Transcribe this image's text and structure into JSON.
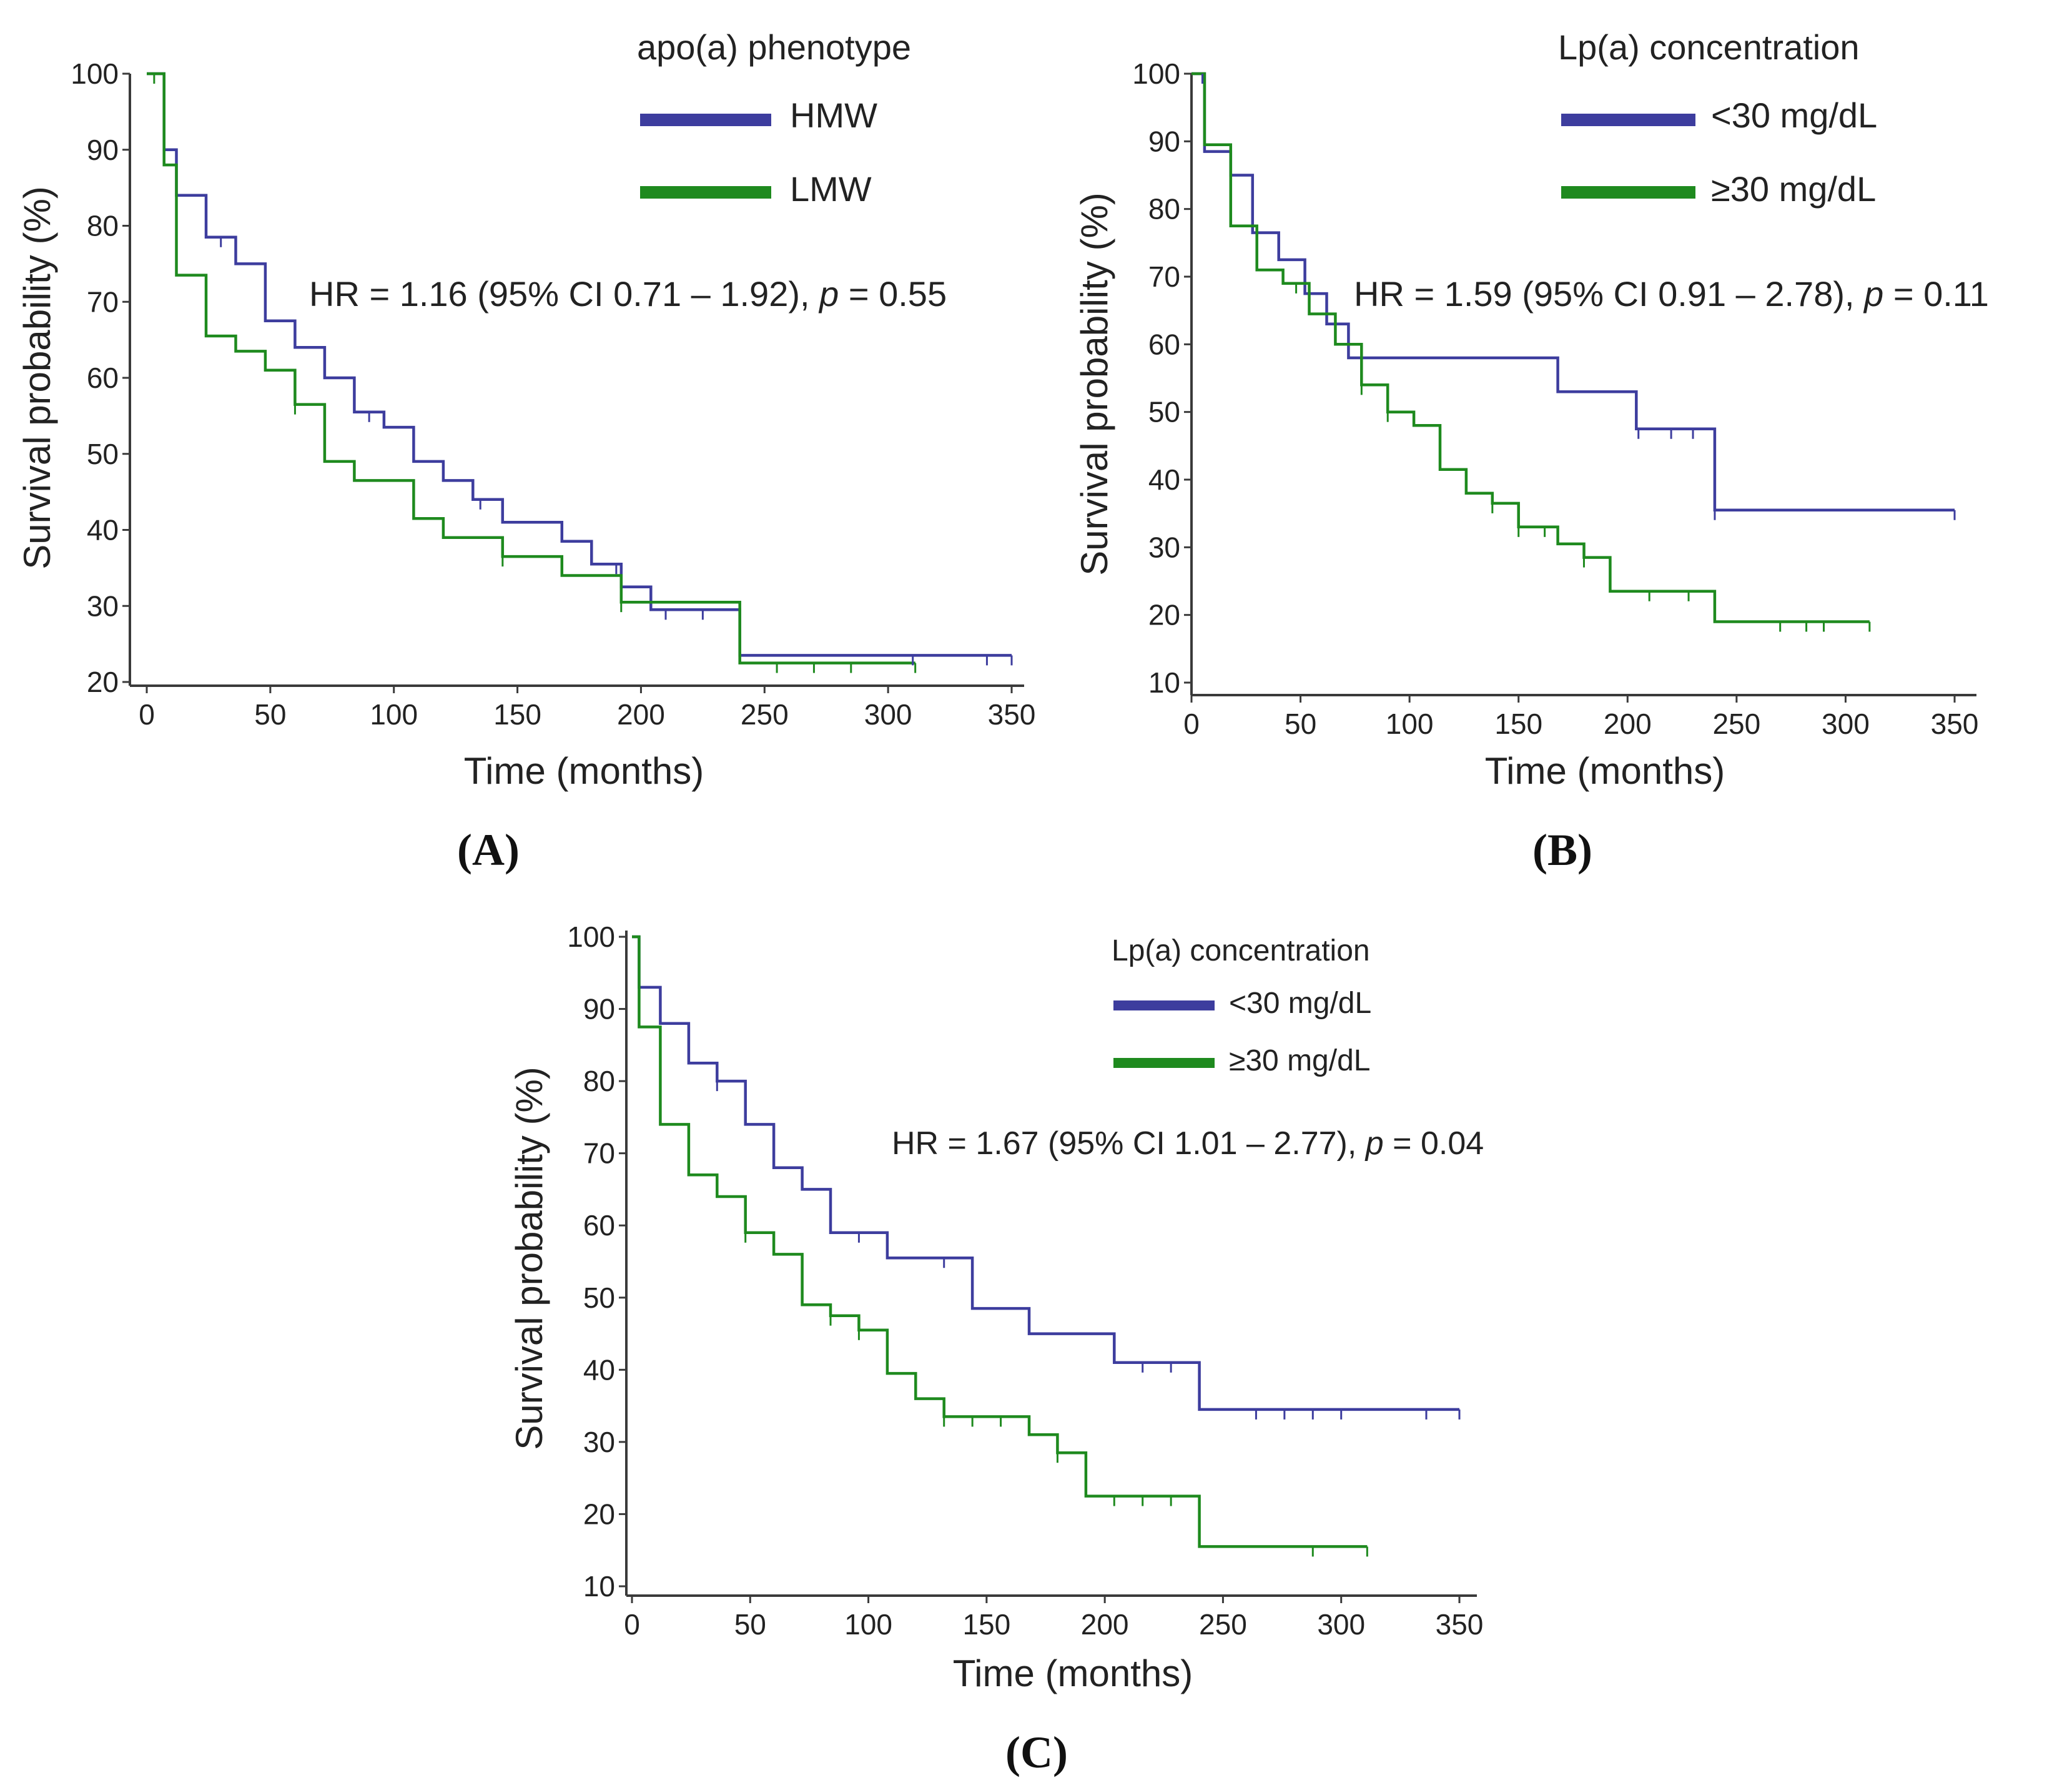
{
  "chart_data": [
    {
      "id": "A",
      "type": "line",
      "subtype": "kaplan-meier",
      "panel_label": "(A)",
      "legend_title": "apo(a) phenotype",
      "xlabel": "Time (months)",
      "ylabel": "Survival probability (%)",
      "xlim": [
        0,
        350
      ],
      "ylim": [
        20,
        100
      ],
      "xticks": [
        0,
        50,
        100,
        150,
        200,
        250,
        300,
        350
      ],
      "yticks": [
        20,
        30,
        40,
        50,
        60,
        70,
        80,
        90,
        100
      ],
      "hr_text": "HR = 1.16 (95% CI 0.71 – 1.92),",
      "p_symbol": "p",
      "p_text": " = 0.55",
      "series": [
        {
          "name": "HMW",
          "color": "#3d3d9e",
          "x": [
            0,
            7,
            7,
            12,
            12,
            24,
            24,
            36,
            36,
            48,
            48,
            60,
            60,
            72,
            72,
            84,
            84,
            96,
            96,
            108,
            108,
            120,
            120,
            132,
            132,
            144,
            144,
            168,
            168,
            180,
            180,
            192,
            192,
            204,
            204,
            240,
            240,
            350
          ],
          "y": [
            100,
            100,
            90,
            90,
            84,
            84,
            78.5,
            78.5,
            75,
            75,
            67.5,
            67.5,
            64,
            64,
            60,
            60,
            55.5,
            55.5,
            53.5,
            53.5,
            49,
            49,
            46.5,
            46.5,
            44,
            44,
            41,
            41,
            38.5,
            38.5,
            35.5,
            35.5,
            32.5,
            32.5,
            29.5,
            29.5,
            23.5,
            23.5
          ],
          "censored": [
            30,
            90,
            135,
            190,
            210,
            225,
            310,
            340,
            350
          ]
        },
        {
          "name": "LMW",
          "color": "#1e8a1e",
          "x": [
            0,
            7,
            7,
            12,
            12,
            24,
            24,
            36,
            36,
            48,
            48,
            60,
            60,
            72,
            72,
            84,
            84,
            108,
            108,
            120,
            120,
            144,
            144,
            168,
            168,
            192,
            192,
            240,
            240,
            311
          ],
          "y": [
            100,
            100,
            88,
            88,
            73.5,
            73.5,
            65.5,
            65.5,
            63.5,
            63.5,
            61,
            61,
            56.5,
            56.5,
            49,
            49,
            46.5,
            46.5,
            41.5,
            41.5,
            39,
            39,
            36.5,
            36.5,
            34,
            34,
            30.5,
            30.5,
            22.5,
            22.5
          ],
          "censored": [
            3,
            60,
            144,
            192,
            255,
            270,
            285,
            311
          ]
        }
      ]
    },
    {
      "id": "B",
      "type": "line",
      "subtype": "kaplan-meier",
      "panel_label": "(B)",
      "legend_title": "Lp(a) concentration",
      "xlabel": "Time (months)",
      "ylabel": "Survival probability (%)",
      "xlim": [
        0,
        350
      ],
      "ylim": [
        10,
        100
      ],
      "xticks": [
        0,
        50,
        100,
        150,
        200,
        250,
        300,
        350
      ],
      "yticks": [
        10,
        20,
        30,
        40,
        50,
        60,
        70,
        80,
        90,
        100
      ],
      "hr_text": "HR = 1.59 (95% CI 0.91 – 2.78),",
      "p_symbol": "p",
      "p_text": " = 0.11",
      "series": [
        {
          "name": "<30 mg/dL",
          "color": "#3d3d9e",
          "x": [
            0,
            6,
            6,
            18,
            18,
            28,
            28,
            40,
            40,
            52,
            52,
            62,
            62,
            72,
            72,
            168,
            168,
            204,
            204,
            240,
            240,
            350
          ],
          "y": [
            100,
            100,
            88.5,
            88.5,
            85,
            85,
            76.5,
            76.5,
            72.5,
            72.5,
            67.5,
            67.5,
            63,
            63,
            58,
            58,
            53,
            53,
            47.5,
            47.5,
            35.5,
            35.5
          ],
          "censored": [
            5,
            205,
            220,
            230,
            240,
            350
          ]
        },
        {
          "name": "≥30 mg/dL",
          "color": "#1e8a1e",
          "x": [
            0,
            6,
            6,
            18,
            18,
            30,
            30,
            42,
            42,
            54,
            54,
            66,
            66,
            78,
            78,
            90,
            90,
            102,
            102,
            114,
            114,
            126,
            126,
            138,
            138,
            150,
            150,
            168,
            168,
            180,
            180,
            192,
            192,
            240,
            240,
            311
          ],
          "y": [
            100,
            100,
            89.5,
            89.5,
            77.5,
            77.5,
            71,
            71,
            69,
            69,
            64.5,
            64.5,
            60,
            60,
            54,
            54,
            50,
            50,
            48,
            48,
            41.5,
            41.5,
            38,
            38,
            36.5,
            36.5,
            33,
            33,
            30.5,
            30.5,
            28.5,
            28.5,
            23.5,
            23.5,
            19,
            19
          ],
          "censored": [
            48,
            78,
            90,
            138,
            150,
            162,
            180,
            210,
            228,
            270,
            282,
            290,
            311
          ]
        }
      ]
    },
    {
      "id": "C",
      "type": "line",
      "subtype": "kaplan-meier",
      "panel_label": "(C)",
      "legend_title": "Lp(a) concentration",
      "xlabel": "Time (months)",
      "ylabel": "Survival probability (%)",
      "xlim": [
        0,
        350
      ],
      "ylim": [
        10,
        100
      ],
      "xticks": [
        0,
        50,
        100,
        150,
        200,
        250,
        300,
        350
      ],
      "yticks": [
        10,
        20,
        30,
        40,
        50,
        60,
        70,
        80,
        90,
        100
      ],
      "hr_text": "HR = 1.67 (95% CI 1.01 – 2.77),",
      "p_symbol": "p",
      "p_text": " = 0.04",
      "series": [
        {
          "name": "<30 mg/dL",
          "color": "#3d3d9e",
          "x": [
            0,
            3,
            3,
            12,
            12,
            24,
            24,
            36,
            36,
            48,
            48,
            60,
            60,
            72,
            72,
            84,
            84,
            108,
            108,
            144,
            144,
            168,
            168,
            204,
            204,
            240,
            240,
            350
          ],
          "y": [
            100,
            100,
            93,
            93,
            88,
            88,
            82.5,
            82.5,
            80,
            80,
            74,
            74,
            68,
            68,
            65,
            65,
            59,
            59,
            55.5,
            55.5,
            48.5,
            48.5,
            45,
            45,
            41,
            41,
            34.5,
            34.5
          ],
          "censored": [
            36,
            96,
            132,
            216,
            228,
            264,
            276,
            288,
            300,
            336,
            350
          ]
        },
        {
          "name": "≥30 mg/dL",
          "color": "#1e8a1e",
          "x": [
            0,
            3,
            3,
            12,
            12,
            24,
            24,
            36,
            36,
            48,
            48,
            60,
            60,
            72,
            72,
            84,
            84,
            96,
            96,
            108,
            108,
            120,
            120,
            132,
            132,
            168,
            168,
            180,
            180,
            192,
            192,
            240,
            240,
            311
          ],
          "y": [
            100,
            100,
            87.5,
            87.5,
            74,
            74,
            67,
            67,
            64,
            64,
            59,
            59,
            56,
            56,
            49,
            49,
            47.5,
            47.5,
            45.5,
            45.5,
            39.5,
            39.5,
            36,
            36,
            33.5,
            33.5,
            31,
            31,
            28.5,
            28.5,
            22.5,
            22.5,
            15.5,
            15.5
          ],
          "censored": [
            48,
            84,
            96,
            132,
            144,
            156,
            180,
            204,
            216,
            228,
            288,
            311
          ]
        }
      ]
    }
  ]
}
